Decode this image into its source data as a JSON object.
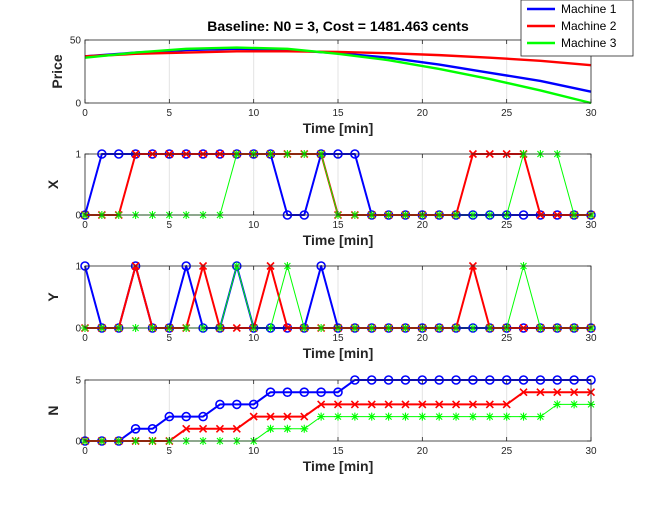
{
  "chart_data": [
    {
      "type": "line",
      "title": "Baseline: N0 = 3, Cost = 1481.463 cents",
      "xlabel": "Time [min]",
      "ylabel": "Price",
      "xlim": [
        0,
        30
      ],
      "ylim": [
        0,
        50
      ],
      "xticks": [
        0,
        5,
        10,
        15,
        20,
        25,
        30
      ],
      "yticks": [
        0,
        50
      ],
      "grid": true,
      "legend_placement": "top-right (outside)",
      "series": [
        {
          "name": "Machine 1",
          "color": "#0000ff",
          "x": [
            0,
            3,
            6,
            9,
            12,
            15,
            18,
            21,
            24,
            27,
            30
          ],
          "values": [
            37,
            40,
            42,
            43,
            42,
            39.5,
            36,
            30.5,
            24,
            17.5,
            9
          ]
        },
        {
          "name": "Machine 2",
          "color": "#ff0000",
          "x": [
            0,
            3,
            6,
            9,
            12,
            15,
            18,
            21,
            24,
            27,
            30
          ],
          "values": [
            37,
            39,
            40,
            41,
            41,
            40.5,
            39.5,
            38,
            36,
            33.5,
            30
          ]
        },
        {
          "name": "Machine 3",
          "color": "#00ff00",
          "x": [
            0,
            3,
            6,
            9,
            12,
            15,
            18,
            21,
            24,
            27,
            30
          ],
          "values": [
            36,
            40,
            43,
            44,
            43,
            39,
            34,
            27,
            19,
            10,
            0
          ]
        }
      ]
    },
    {
      "type": "line",
      "xlabel": "Time [min]",
      "ylabel": "X",
      "xlim": [
        0,
        30
      ],
      "ylim": [
        0,
        1
      ],
      "xticks": [
        0,
        5,
        10,
        15,
        20,
        25,
        30
      ],
      "yticks": [
        0,
        1
      ],
      "grid": true,
      "x": [
        0,
        1,
        2,
        3,
        4,
        5,
        6,
        7,
        8,
        9,
        10,
        11,
        12,
        13,
        14,
        15,
        16,
        17,
        18,
        19,
        20,
        21,
        22,
        23,
        24,
        25,
        26,
        27,
        28,
        29,
        30
      ],
      "series": [
        {
          "name": "Machine 1",
          "marker": "o",
          "values": [
            0,
            1,
            1,
            1,
            1,
            1,
            1,
            1,
            1,
            1,
            1,
            1,
            0,
            0,
            1,
            1,
            1,
            0,
            0,
            0,
            0,
            0,
            0,
            0,
            0,
            0,
            0,
            0,
            0,
            0,
            0
          ]
        },
        {
          "name": "Machine 2",
          "marker": "x",
          "values": [
            0,
            0,
            0,
            1,
            1,
            1,
            1,
            1,
            1,
            1,
            1,
            1,
            1,
            1,
            1,
            0,
            0,
            0,
            0,
            0,
            0,
            0,
            0,
            1,
            1,
            1,
            1,
            0,
            0,
            0,
            0
          ]
        },
        {
          "name": "Machine 3",
          "marker": "*",
          "values": [
            0,
            0,
            0,
            0,
            0,
            0,
            0,
            0,
            0,
            1,
            1,
            1,
            1,
            1,
            1,
            0,
            0,
            0,
            0,
            0,
            0,
            0,
            0,
            0,
            0,
            0,
            1,
            1,
            1,
            0,
            0
          ]
        }
      ]
    },
    {
      "type": "line",
      "xlabel": "Time [min]",
      "ylabel": "Y",
      "xlim": [
        0,
        30
      ],
      "ylim": [
        0,
        1
      ],
      "xticks": [
        0,
        5,
        10,
        15,
        20,
        25,
        30
      ],
      "yticks": [
        0,
        1
      ],
      "grid": true,
      "x": [
        0,
        1,
        2,
        3,
        4,
        5,
        6,
        7,
        8,
        9,
        10,
        11,
        12,
        13,
        14,
        15,
        16,
        17,
        18,
        19,
        20,
        21,
        22,
        23,
        24,
        25,
        26,
        27,
        28,
        29,
        30
      ],
      "series": [
        {
          "name": "Machine 1",
          "marker": "o",
          "values": [
            1,
            0,
            0,
            1,
            0,
            0,
            1,
            0,
            0,
            1,
            0,
            0,
            0,
            0,
            1,
            0,
            0,
            0,
            0,
            0,
            0,
            0,
            0,
            0,
            0,
            0,
            0,
            0,
            0,
            0,
            0
          ]
        },
        {
          "name": "Machine 2",
          "marker": "x",
          "values": [
            0,
            0,
            0,
            1,
            0,
            0,
            0,
            1,
            0,
            0,
            0,
            1,
            0,
            0,
            0,
            0,
            0,
            0,
            0,
            0,
            0,
            0,
            0,
            1,
            0,
            0,
            0,
            0,
            0,
            0,
            0
          ]
        },
        {
          "name": "Machine 3",
          "marker": "*",
          "values": [
            0,
            0,
            0,
            0,
            0,
            0,
            0,
            0,
            0,
            1,
            0,
            0,
            1,
            0,
            0,
            0,
            0,
            0,
            0,
            0,
            0,
            0,
            0,
            0,
            0,
            0,
            1,
            0,
            0,
            0,
            0
          ]
        }
      ]
    },
    {
      "type": "line",
      "xlabel": "Time [min]",
      "ylabel": "N",
      "xlim": [
        0,
        30
      ],
      "ylim": [
        0,
        5
      ],
      "xticks": [
        0,
        5,
        10,
        15,
        20,
        25,
        30
      ],
      "yticks": [
        0,
        5
      ],
      "grid": true,
      "x": [
        0,
        1,
        2,
        3,
        4,
        5,
        6,
        7,
        8,
        9,
        10,
        11,
        12,
        13,
        14,
        15,
        16,
        17,
        18,
        19,
        20,
        21,
        22,
        23,
        24,
        25,
        26,
        27,
        28,
        29,
        30
      ],
      "series": [
        {
          "name": "Machine 1",
          "marker": "o",
          "values": [
            0,
            0,
            0,
            1,
            1,
            2,
            2,
            2,
            3,
            3,
            3,
            4,
            4,
            4,
            4,
            4,
            5,
            5,
            5,
            5,
            5,
            5,
            5,
            5,
            5,
            5,
            5,
            5,
            5,
            5,
            5
          ]
        },
        {
          "name": "Machine 2",
          "marker": "x",
          "values": [
            0,
            0,
            0,
            0,
            0,
            0,
            1,
            1,
            1,
            1,
            2,
            2,
            2,
            2,
            3,
            3,
            3,
            3,
            3,
            3,
            3,
            3,
            3,
            3,
            3,
            3,
            4,
            4,
            4,
            4,
            4
          ]
        },
        {
          "name": "Machine 3",
          "marker": "*",
          "values": [
            0,
            0,
            0,
            0,
            0,
            0,
            0,
            0,
            0,
            0,
            0,
            1,
            1,
            1,
            2,
            2,
            2,
            2,
            2,
            2,
            2,
            2,
            2,
            2,
            2,
            2,
            2,
            2,
            3,
            3,
            3
          ]
        }
      ]
    }
  ],
  "legend": {
    "items": [
      {
        "label": "Machine 1",
        "color": "#0000ff"
      },
      {
        "label": "Machine 2",
        "color": "#ff0000"
      },
      {
        "label": "Machine 3",
        "color": "#00ff00"
      }
    ]
  }
}
